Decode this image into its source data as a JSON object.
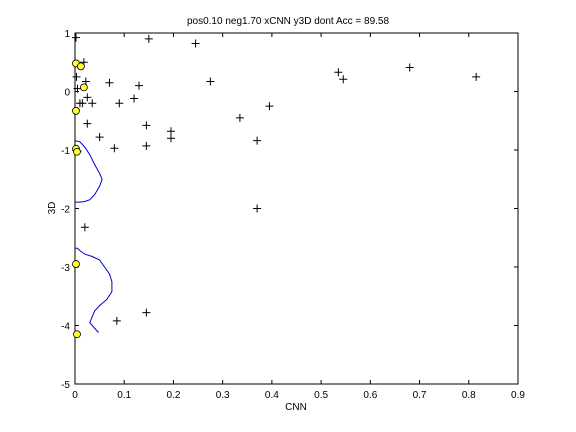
{
  "chart_data": {
    "type": "scatter",
    "title": "pos0.10 neg1.70 xCNN y3D dont Acc = 89.58",
    "xlabel": "CNN",
    "ylabel": "3D",
    "xlim": [
      0,
      0.9
    ],
    "ylim": [
      -5,
      1
    ],
    "xticks": [
      0,
      0.1,
      0.2,
      0.3,
      0.4,
      0.5,
      0.6,
      0.7,
      0.8,
      0.9
    ],
    "xtick_labels": [
      "0",
      "0.1",
      "0.2",
      "0.3",
      "0.4",
      "0.5",
      "0.6",
      "0.7",
      "0.8",
      "0.9"
    ],
    "yticks": [
      1,
      0,
      -1,
      -2,
      -3,
      -4,
      -5
    ],
    "ytick_labels": [
      "1",
      "0",
      "-1",
      "-2",
      "-3",
      "-4",
      "-5"
    ],
    "grid": false,
    "legend": "none",
    "series": [
      {
        "marker": "plus",
        "color": "#000000",
        "points": [
          [
            0.002,
            0.92
          ],
          [
            0.15,
            0.9
          ],
          [
            0.245,
            0.82
          ],
          [
            0.018,
            0.5
          ],
          [
            0.003,
            0.25
          ],
          [
            0.022,
            0.17
          ],
          [
            0.07,
            0.15
          ],
          [
            0.13,
            0.1
          ],
          [
            0.275,
            0.17
          ],
          [
            0.535,
            0.33
          ],
          [
            0.545,
            0.21
          ],
          [
            0.68,
            0.41
          ],
          [
            0.815,
            0.25
          ],
          [
            0.005,
            0.05
          ],
          [
            0.025,
            -0.1
          ],
          [
            0.01,
            -0.2
          ],
          [
            0.015,
            -0.2
          ],
          [
            0.035,
            -0.2
          ],
          [
            0.09,
            -0.2
          ],
          [
            0.12,
            -0.12
          ],
          [
            0.395,
            -0.25
          ],
          [
            0.025,
            -0.55
          ],
          [
            0.145,
            -0.58
          ],
          [
            0.335,
            -0.45
          ],
          [
            0.195,
            -0.68
          ],
          [
            0.05,
            -0.78
          ],
          [
            0.195,
            -0.8
          ],
          [
            0.37,
            -0.84
          ],
          [
            0.145,
            -0.93
          ],
          [
            0.08,
            -0.97
          ],
          [
            0.005,
            -1.02
          ],
          [
            0.37,
            -2.0
          ],
          [
            0.02,
            -2.32
          ],
          [
            0.145,
            -3.78
          ],
          [
            0.085,
            -3.92
          ]
        ]
      },
      {
        "marker": "circle",
        "color": "#ffff33",
        "edge": "#000000",
        "points": [
          [
            0.002,
            0.48
          ],
          [
            0.012,
            0.43
          ],
          [
            0.018,
            0.07
          ],
          [
            0.002,
            -0.33
          ],
          [
            0.002,
            -0.98
          ],
          [
            0.004,
            -1.03
          ],
          [
            0.002,
            -2.95
          ],
          [
            0.004,
            -4.15
          ]
        ]
      },
      {
        "marker": "line",
        "color": "#0000cc",
        "points": [
          [
            0.0,
            -0.84
          ],
          [
            0.01,
            -0.86
          ],
          [
            0.02,
            -0.95
          ],
          [
            0.03,
            -1.08
          ],
          [
            0.04,
            -1.25
          ],
          [
            0.05,
            -1.4
          ],
          [
            0.055,
            -1.5
          ],
          [
            0.05,
            -1.62
          ],
          [
            0.04,
            -1.76
          ],
          [
            0.03,
            -1.85
          ],
          [
            0.02,
            -1.88
          ],
          [
            0.01,
            -1.89
          ],
          [
            0.0,
            -1.89
          ]
        ]
      },
      {
        "marker": "line",
        "color": "#0000cc",
        "points": [
          [
            0.0,
            -2.68
          ],
          [
            0.005,
            -2.68
          ],
          [
            0.01,
            -2.72
          ],
          [
            0.02,
            -2.78
          ],
          [
            0.035,
            -2.82
          ],
          [
            0.05,
            -2.88
          ],
          [
            0.06,
            -3.0
          ],
          [
            0.07,
            -3.12
          ],
          [
            0.075,
            -3.25
          ],
          [
            0.075,
            -3.42
          ],
          [
            0.065,
            -3.55
          ],
          [
            0.05,
            -3.66
          ],
          [
            0.04,
            -3.75
          ],
          [
            0.035,
            -3.85
          ],
          [
            0.03,
            -3.95
          ],
          [
            0.04,
            -4.05
          ],
          [
            0.048,
            -4.12
          ]
        ]
      }
    ]
  }
}
